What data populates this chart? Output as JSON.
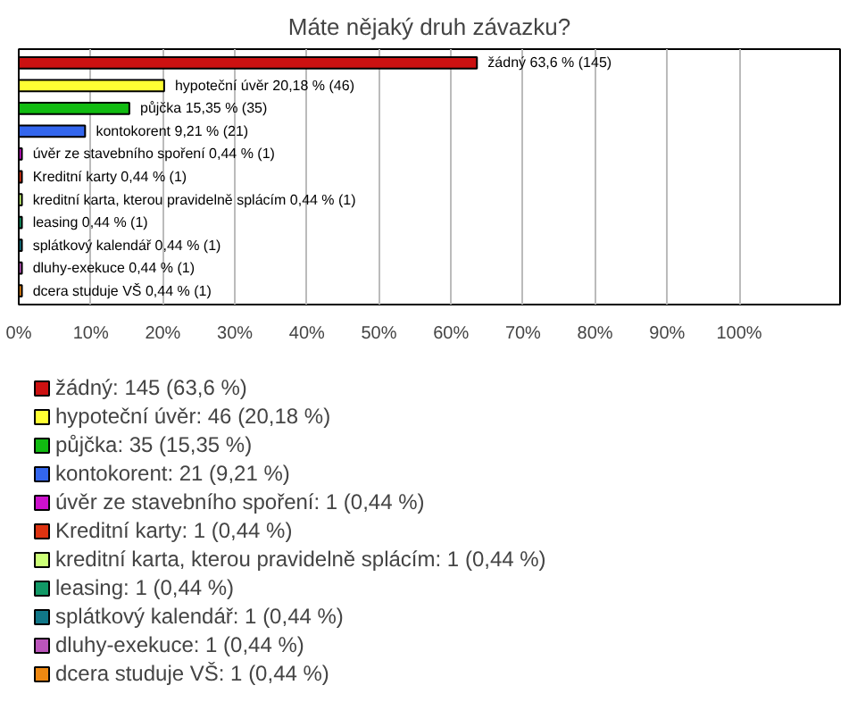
{
  "chart_data": {
    "type": "bar",
    "orientation": "horizontal",
    "title": "Máte nějaký druh závazku?",
    "categories": [
      null,
      null,
      null,
      null,
      null,
      null,
      null,
      null,
      null,
      null,
      null
    ],
    "series": [
      {
        "name": "žádný: 145 (63,6 %)",
        "color": "#cc1111",
        "values": [
          63.6,
          null,
          null,
          null,
          null,
          null,
          null,
          null,
          null,
          null,
          null
        ],
        "value_labels": [
          "žádný 63,6 % (145)",
          null,
          null,
          null,
          null,
          null,
          null,
          null,
          null,
          null,
          null
        ]
      },
      {
        "name": "hypoteční úvěr: 46 (20,18 %)",
        "color": "#ffff33",
        "values": [
          null,
          20.18,
          null,
          null,
          null,
          null,
          null,
          null,
          null,
          null,
          null
        ],
        "value_labels": [
          null,
          "hypoteční úvěr 20,18 % (46)",
          null,
          null,
          null,
          null,
          null,
          null,
          null,
          null,
          null
        ]
      },
      {
        "name": "půjčka: 35 (15,35 %)",
        "color": "#11bb11",
        "values": [
          null,
          null,
          15.35,
          null,
          null,
          null,
          null,
          null,
          null,
          null,
          null
        ],
        "value_labels": [
          null,
          null,
          "půjčka 15,35 % (35)",
          null,
          null,
          null,
          null,
          null,
          null,
          null,
          null
        ]
      },
      {
        "name": "kontokorent: 21 (9,21 %)",
        "color": "#3366ee",
        "values": [
          null,
          null,
          null,
          9.21,
          null,
          null,
          null,
          null,
          null,
          null,
          null
        ],
        "value_labels": [
          null,
          null,
          null,
          "kontokorent 9,21 % (21)",
          null,
          null,
          null,
          null,
          null,
          null,
          null
        ]
      },
      {
        "name": "úvěr ze stavebního spoření: 1 (0,44 %)",
        "color": "#cc11cc",
        "values": [
          null,
          null,
          null,
          null,
          0.44,
          null,
          null,
          null,
          null,
          null,
          null
        ],
        "value_labels": [
          null,
          null,
          null,
          null,
          "úvěr ze stavebního spoření 0,44 % (1)",
          null,
          null,
          null,
          null,
          null,
          null
        ]
      },
      {
        "name": "Kreditní karty: 1 (0,44 %)",
        "color": "#dd3311",
        "values": [
          null,
          null,
          null,
          null,
          null,
          0.44,
          null,
          null,
          null,
          null,
          null
        ],
        "value_labels": [
          null,
          null,
          null,
          null,
          null,
          "Kreditní karty 0,44 % (1)",
          null,
          null,
          null,
          null,
          null
        ]
      },
      {
        "name": "kreditní karta, kterou pravidelně splácím: 1 (0,44 %)",
        "color": "#ccff77",
        "values": [
          null,
          null,
          null,
          null,
          null,
          null,
          0.44,
          null,
          null,
          null,
          null
        ],
        "value_labels": [
          null,
          null,
          null,
          null,
          null,
          null,
          "kreditní karta, kterou pravidelně splácím 0,44 % (1)",
          null,
          null,
          null,
          null
        ]
      },
      {
        "name": "leasing: 1 (0,44 %)",
        "color": "#119966",
        "values": [
          null,
          null,
          null,
          null,
          null,
          null,
          null,
          0.44,
          null,
          null,
          null
        ],
        "value_labels": [
          null,
          null,
          null,
          null,
          null,
          null,
          null,
          "leasing 0,44 % (1)",
          null,
          null,
          null
        ]
      },
      {
        "name": "splátkový kalendář: 1 (0,44 %)",
        "color": "#117788",
        "values": [
          null,
          null,
          null,
          null,
          null,
          null,
          null,
          null,
          0.44,
          null,
          null
        ],
        "value_labels": [
          null,
          null,
          null,
          null,
          null,
          null,
          null,
          null,
          "splátkový kalendář 0,44 % (1)",
          null,
          null
        ]
      },
      {
        "name": "dluhy-exekuce: 1 (0,44 %)",
        "color": "#bb55bb",
        "values": [
          null,
          null,
          null,
          null,
          null,
          null,
          null,
          null,
          null,
          0.44,
          null
        ],
        "value_labels": [
          null,
          null,
          null,
          null,
          null,
          null,
          null,
          null,
          null,
          "dluhy-exekuce 0,44 % (1)",
          null
        ]
      },
      {
        "name": "dcera studuje VŠ: 1 (0,44 %)",
        "color": "#ee8811",
        "values": [
          null,
          null,
          null,
          null,
          null,
          null,
          null,
          null,
          null,
          null,
          0.44
        ],
        "value_labels": [
          null,
          null,
          null,
          null,
          null,
          null,
          null,
          null,
          null,
          null,
          "dcera studuje VŠ 0,44 % (1)"
        ]
      }
    ],
    "xlim": [
      0,
      114
    ],
    "xticks": [
      {
        "value": 0,
        "label": "0%"
      },
      {
        "value": 10,
        "label": "10%"
      },
      {
        "value": 20,
        "label": "20%"
      },
      {
        "value": 30,
        "label": "30%"
      },
      {
        "value": 40,
        "label": "40%"
      },
      {
        "value": 50,
        "label": "50%"
      },
      {
        "value": 60,
        "label": "60%"
      },
      {
        "value": 70,
        "label": "70%"
      },
      {
        "value": 80,
        "label": "80%"
      },
      {
        "value": 90,
        "label": "90%"
      },
      {
        "value": 100,
        "label": "100%"
      }
    ],
    "grid": "x",
    "legend": "bottom"
  }
}
